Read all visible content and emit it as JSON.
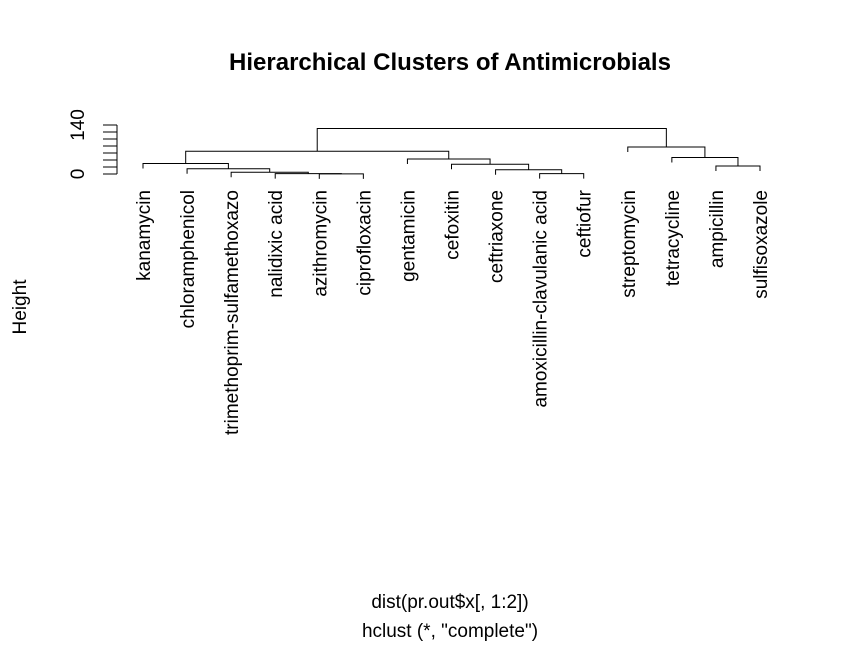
{
  "chart_data": {
    "type": "dendrogram",
    "title": "Hierarchical Clusters of Antimicrobials",
    "ylabel": "Height",
    "xlabel": "dist(pr.out$x[, 1:2])",
    "sub": "hclust (*, \"complete\")",
    "y_ticks": [
      "0",
      "140"
    ],
    "ylim": [
      0,
      140
    ],
    "leaves": [
      "kanamycin",
      "chloramphenicol",
      "trimethoprim-sulfamethoxazo",
      "nalidixic acid",
      "azithromycin",
      "ciprofloxacin",
      "gentamicin",
      "cefoxitin",
      "ceftriaxone",
      "amoxicillin-clavulanic acid",
      "ceftiofur",
      "streptomycin",
      "tetracycline",
      "ampicillin",
      "sulfisoxazole"
    ],
    "merges": [
      {
        "a": "L:4",
        "b": "L:5",
        "height": 0.5
      },
      {
        "a": "L:3",
        "b": "M:0",
        "height": 1
      },
      {
        "a": "L:9",
        "b": "L:10",
        "height": 1
      },
      {
        "a": "L:2",
        "b": "M:1",
        "height": 5
      },
      {
        "a": "L:8",
        "b": "M:2",
        "height": 12
      },
      {
        "a": "L:1",
        "b": "M:3",
        "height": 15
      },
      {
        "a": "L:13",
        "b": "L:14",
        "height": 23
      },
      {
        "a": "L:7",
        "b": "M:4",
        "height": 28
      },
      {
        "a": "L:0",
        "b": "M:5",
        "height": 30
      },
      {
        "a": "L:6",
        "b": "M:7",
        "height": 43
      },
      {
        "a": "L:12",
        "b": "M:6",
        "height": 47
      },
      {
        "a": "M:8",
        "b": "M:9",
        "height": 65
      },
      {
        "a": "M:10",
        "b": "L:11",
        "height": 77
      },
      {
        "a": "M:11",
        "b": "M:12",
        "height": 130
      }
    ]
  }
}
